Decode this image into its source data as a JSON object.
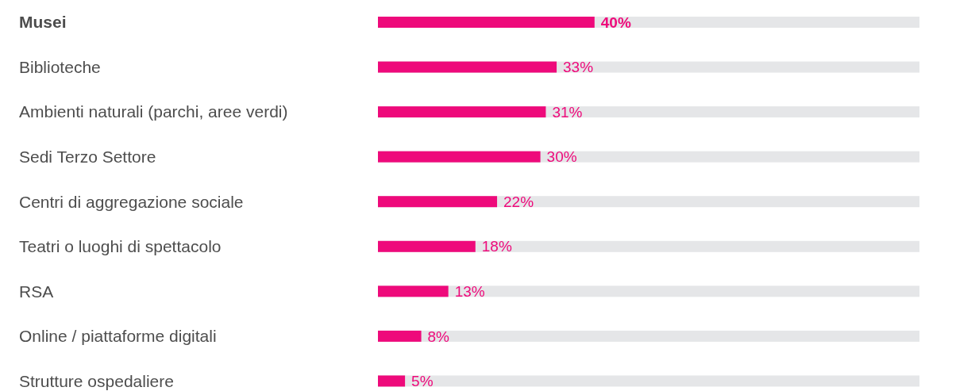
{
  "chart_data": {
    "type": "bar",
    "orientation": "horizontal",
    "categories": [
      "Musei",
      "Biblioteche",
      "Ambienti naturali (parchi, aree verdi)",
      "Sedi Terzo Settore",
      "Centri di aggregazione sociale",
      "Teatri o luoghi di spettacolo",
      "RSA",
      "Online / piattaforme digitali",
      "Strutture ospedaliere"
    ],
    "values": [
      40,
      33,
      31,
      30,
      22,
      18,
      13,
      8,
      5
    ],
    "value_labels": [
      "40%",
      "33%",
      "31%",
      "30%",
      "22%",
      "18%",
      "13%",
      "8%",
      "5%"
    ],
    "color": "#ee0a7b",
    "xlim": [
      0,
      100
    ],
    "tick_labels": "y"
  }
}
